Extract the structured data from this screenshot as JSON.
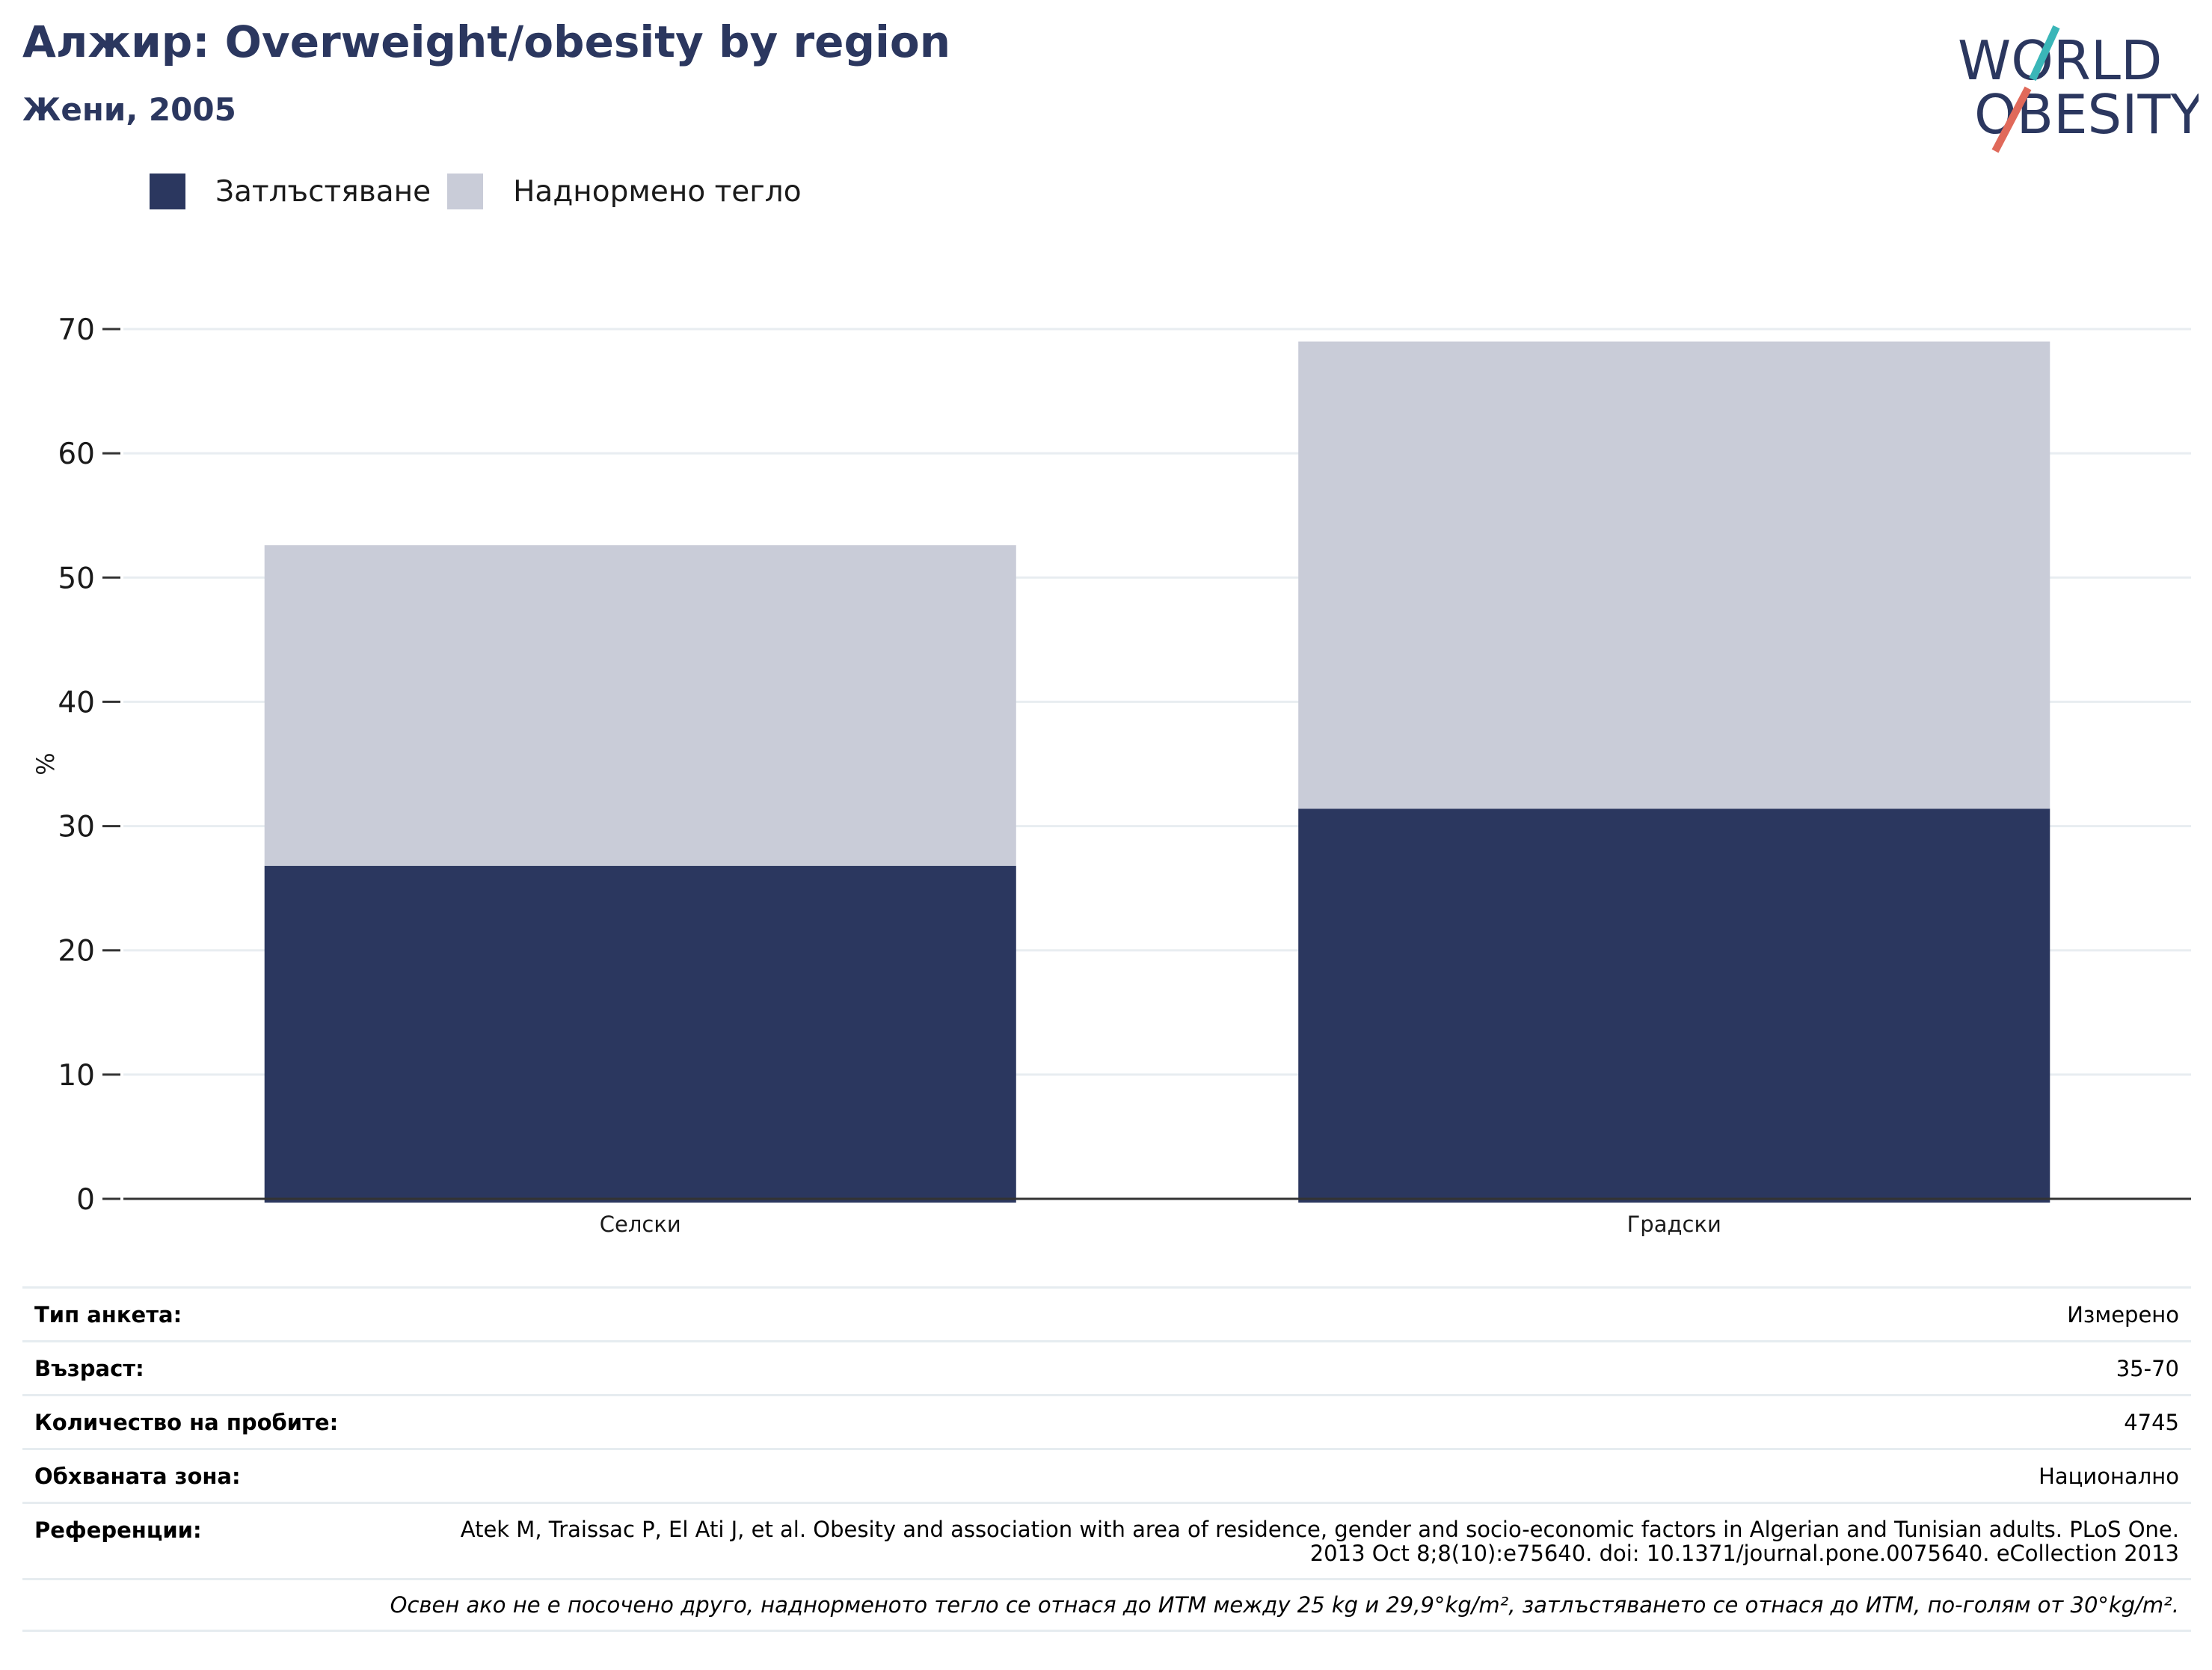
{
  "header": {
    "title": "Алжир: Overweight/obesity by region",
    "subtitle": "Жени, 2005"
  },
  "logo": {
    "name": "world-obesity-logo",
    "line1": "WORLD",
    "line2": "OBESITY"
  },
  "colors": {
    "obesity": "#2b375f",
    "overweight": "#c9ccd8",
    "title": "#2b375f",
    "logo_teal": "#3ab6b8",
    "logo_coral": "#e0695a"
  },
  "legend": [
    {
      "label": "Затлъстяване",
      "color": "#2b375f"
    },
    {
      "label": "Наднормено тегло",
      "color": "#c9ccd8"
    }
  ],
  "chart_data": {
    "type": "bar",
    "stacked": true,
    "categories": [
      "Селски",
      "Градски"
    ],
    "series": [
      {
        "name": "Затлъстяване",
        "values": [
          26.8,
          31.4
        ]
      },
      {
        "name": "Наднормено тегло",
        "values": [
          25.8,
          37.6
        ]
      }
    ],
    "ylabel": "%",
    "ylim": [
      0,
      70
    ],
    "yticks": [
      0,
      10,
      20,
      30,
      40,
      50,
      60,
      70
    ],
    "grid": true,
    "legend_position": "top-left"
  },
  "info": {
    "survey_type_label": "Тип анкета:",
    "survey_type_value": "Измерено",
    "age_label": "Възраст:",
    "age_value": "35-70",
    "sample_label": "Количество на пробите:",
    "sample_value": "4745",
    "area_label": "Обхваната зона:",
    "area_value": "Национално",
    "references_label": "Референции:",
    "references_value": "Atek M, Traissac P, El Ati J, et al. Obesity and association with area of residence, gender and socio-economic factors in Algerian and Tunisian adults. PLoS One. 2013 Oct 8;8(10):e75640. doi: 10.1371/journal.pone.0075640. eCollection 2013",
    "note": "Освен ако не е посочено друго, наднорменото тегло се отнася до ИТМ между 25 kg и 29,9°kg/m², затлъстяването се отнася до ИТМ, по-голям от 30°kg/m²."
  }
}
